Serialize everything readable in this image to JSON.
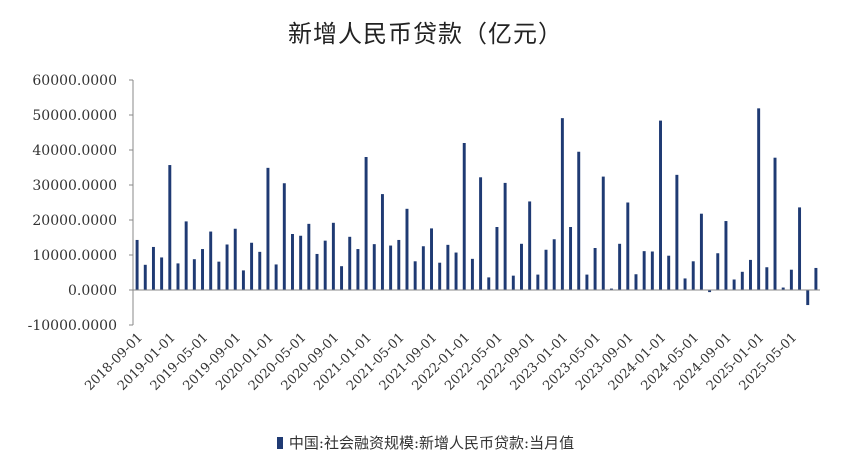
{
  "chart_data": {
    "type": "bar",
    "title": "新增人民币贷款（亿元）",
    "legend": "中国:社会融资规模:新增人民币贷款:当月值",
    "legend_position": "bottom",
    "bar_color": "#1f3a73",
    "grid": false,
    "ylim": [
      -10000,
      60000
    ],
    "y_ticks": [
      "-10000.0000",
      "0.0000",
      "10000.0000",
      "20000.0000",
      "30000.0000",
      "40000.0000",
      "50000.0000",
      "60000.0000"
    ],
    "x_tick_labels": [
      "2018-09-01",
      "2019-01-01",
      "2019-05-01",
      "2019-09-01",
      "2020-01-01",
      "2020-05-01",
      "2020-09-01",
      "2021-01-01",
      "2021-05-01",
      "2021-09-01",
      "2022-01-01",
      "2022-05-01",
      "2022-09-01",
      "2023-01-01",
      "2023-05-01",
      "2023-09-01",
      "2024-01-01",
      "2024-05-01",
      "2024-09-01",
      "2025-01-01",
      "2025-05-01"
    ],
    "start_month": "2018-09",
    "values": [
      14300,
      7200,
      12300,
      9300,
      35700,
      7600,
      19600,
      8800,
      11700,
      16700,
      8100,
      13000,
      17500,
      5600,
      13500,
      10900,
      34900,
      7300,
      30500,
      16000,
      15500,
      18900,
      10300,
      14100,
      19200,
      6800,
      15200,
      11700,
      38000,
      13100,
      27400,
      12700,
      14300,
      23200,
      8200,
      12500,
      17600,
      7800,
      12900,
      10700,
      42000,
      8900,
      32200,
      3600,
      18000,
      30600,
      4100,
      13200,
      25300,
      4400,
      11500,
      14500,
      49100,
      18000,
      39500,
      4400,
      12000,
      32400,
      400,
      13200,
      25000,
      4500,
      11100,
      11000,
      48400,
      9800,
      32900,
      3300,
      8200,
      21800,
      -600,
      10500,
      19700,
      3000,
      5200,
      8600,
      51900,
      6500,
      37800,
      700,
      5800,
      23600,
      -4300,
      6300
    ]
  }
}
